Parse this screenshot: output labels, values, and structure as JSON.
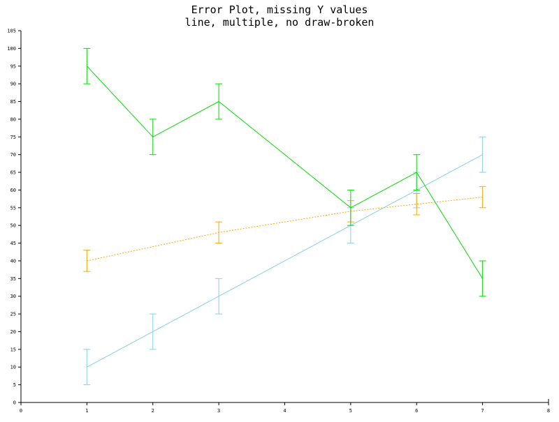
{
  "chart_data": {
    "type": "line",
    "title": "Error Plot, missing Y values",
    "subtitle": "line, multiple, no draw-broken",
    "xlabel": "",
    "ylabel": "",
    "xlim": [
      0,
      8
    ],
    "ylim": [
      0,
      105
    ],
    "x_ticks": [
      "0",
      "1",
      "2",
      "3",
      "4",
      "5",
      "6",
      "7",
      "8"
    ],
    "y_ticks": [
      "0",
      "5",
      "10",
      "15",
      "20",
      "25",
      "30",
      "35",
      "40",
      "45",
      "50",
      "55",
      "60",
      "65",
      "70",
      "75",
      "80",
      "85",
      "90",
      "95",
      "100",
      "105"
    ],
    "grid": false,
    "legend": "none",
    "series": [
      {
        "color": "#87ceeb",
        "style": "solid",
        "points": [
          {
            "x": 1,
            "y": 10,
            "lo": 5,
            "hi": 15
          },
          {
            "x": 2,
            "y": 20,
            "lo": 15,
            "hi": 25
          },
          {
            "x": 3,
            "y": 30,
            "lo": 25,
            "hi": 35
          },
          {
            "x": 5,
            "y": 50,
            "lo": 45,
            "hi": 55
          },
          {
            "x": 6,
            "y": 60,
            "lo": 55,
            "hi": 65
          },
          {
            "x": 7,
            "y": 70,
            "lo": 65,
            "hi": 75
          }
        ]
      },
      {
        "color": "#ffa500",
        "style": "dotted",
        "points": [
          {
            "x": 1,
            "y": 40,
            "lo": 37,
            "hi": 43
          },
          {
            "x": 3,
            "y": 48,
            "lo": 45,
            "hi": 51
          },
          {
            "x": 5,
            "y": 54,
            "lo": 51,
            "hi": 57
          },
          {
            "x": 6,
            "y": 56,
            "lo": 53,
            "hi": 59
          },
          {
            "x": 7,
            "y": 58,
            "lo": 55,
            "hi": 61
          }
        ]
      },
      {
        "color": "#00dd00",
        "style": "solid",
        "points": [
          {
            "x": 1,
            "y": 95,
            "lo": 90,
            "hi": 100
          },
          {
            "x": 2,
            "y": 75,
            "lo": 70,
            "hi": 80
          },
          {
            "x": 3,
            "y": 85,
            "lo": 80,
            "hi": 90
          },
          {
            "x": 5,
            "y": 55,
            "lo": 50,
            "hi": 60
          },
          {
            "x": 6,
            "y": 65,
            "lo": 60,
            "hi": 70
          },
          {
            "x": 7,
            "y": 35,
            "lo": 30,
            "hi": 40
          }
        ]
      }
    ]
  }
}
